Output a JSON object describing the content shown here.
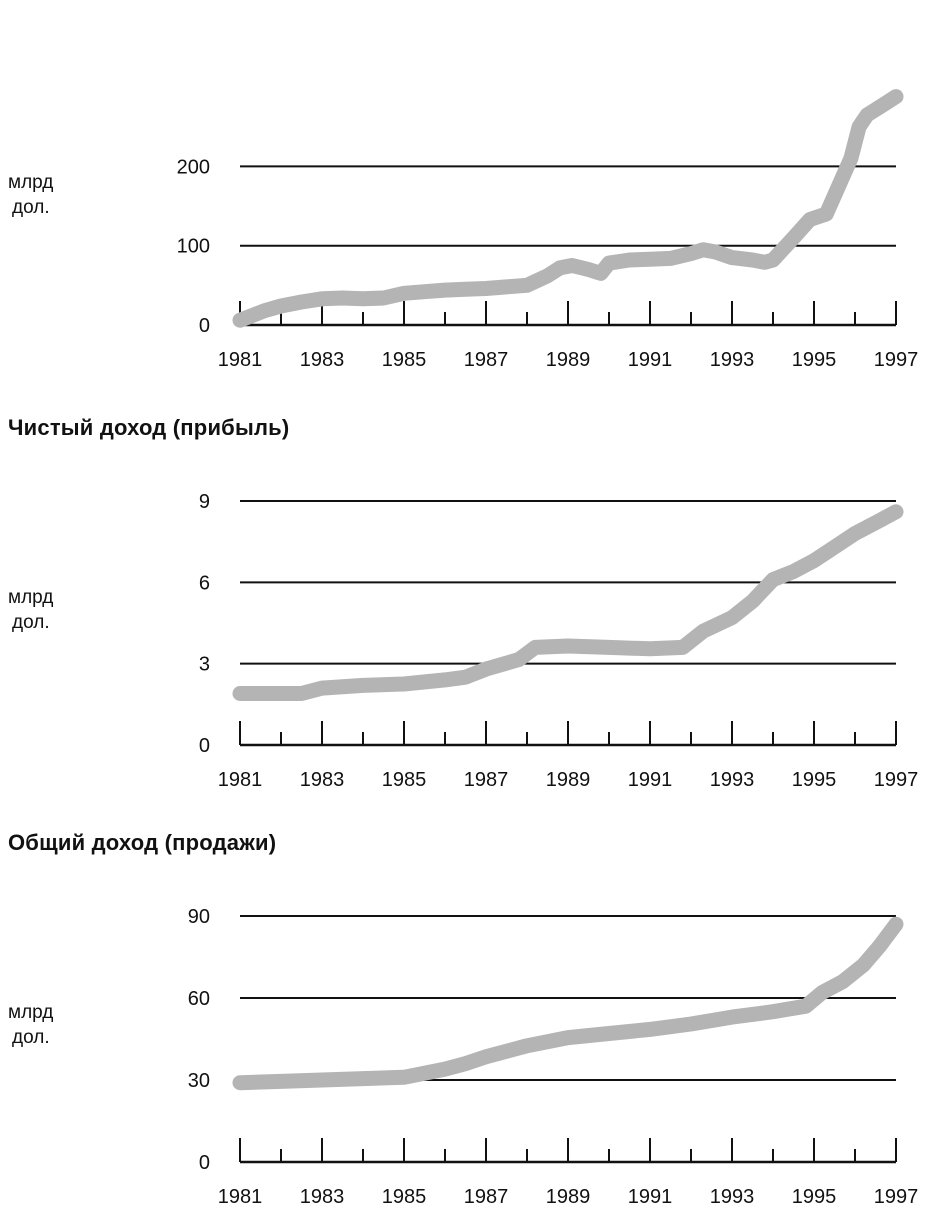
{
  "chart_data": [
    {
      "type": "line",
      "title": "",
      "unit_label": [
        "млрд",
        "дол."
      ],
      "ylim": [
        0,
        290
      ],
      "yticks": [
        0,
        100,
        200
      ],
      "xlim": [
        1981,
        1997
      ],
      "xtick_labels": [
        "1981",
        "1983",
        "1985",
        "1987",
        "1989",
        "1991",
        "1993",
        "1995",
        "1997"
      ],
      "grid": "horizontal",
      "series": [
        {
          "color": "#b4b4b4",
          "x": [
            1981,
            1981.3,
            1981.6,
            1982,
            1982.5,
            1983,
            1983.5,
            1984,
            1984.5,
            1985,
            1985.5,
            1986,
            1986.5,
            1987,
            1987.5,
            1988,
            1988.5,
            1988.8,
            1989.1,
            1989.5,
            1989.8,
            1990,
            1990.5,
            1991,
            1991.5,
            1992,
            1992.3,
            1992.6,
            1993,
            1993.5,
            1993.8,
            1994,
            1994.5,
            1994.9,
            1995.3,
            1995.6,
            1995.9,
            1996.1,
            1996.3,
            1996.7,
            1997
          ],
          "y": [
            6,
            12,
            18,
            24,
            29,
            33,
            34,
            33,
            34,
            40,
            42,
            44,
            45,
            46,
            48,
            50,
            62,
            72,
            75,
            70,
            65,
            78,
            82,
            83,
            84,
            90,
            95,
            92,
            85,
            82,
            79,
            82,
            110,
            133,
            140,
            175,
            210,
            250,
            265,
            278,
            288
          ]
        }
      ]
    },
    {
      "type": "line",
      "title": "Чистый доход (прибыль)",
      "unit_label": [
        "млрд",
        "дол."
      ],
      "ylim": [
        0,
        9
      ],
      "yticks": [
        0,
        3,
        6,
        9
      ],
      "xlim": [
        1981,
        1997
      ],
      "xtick_labels": [
        "1981",
        "1983",
        "1985",
        "1987",
        "1989",
        "1991",
        "1993",
        "1995",
        "1997"
      ],
      "grid": "horizontal",
      "series": [
        {
          "color": "#b4b4b4",
          "x": [
            1981,
            1982,
            1982.5,
            1983,
            1984,
            1985,
            1986,
            1986.5,
            1987,
            1987.8,
            1988.2,
            1989,
            1990,
            1991,
            1991.8,
            1992.3,
            1993,
            1993.5,
            1994,
            1994.5,
            1995,
            1995.5,
            1996,
            1996.5,
            1997
          ],
          "y": [
            1.9,
            1.9,
            1.9,
            2.1,
            2.2,
            2.25,
            2.4,
            2.5,
            2.8,
            3.15,
            3.6,
            3.65,
            3.6,
            3.55,
            3.6,
            4.2,
            4.7,
            5.3,
            6.1,
            6.4,
            6.8,
            7.3,
            7.8,
            8.2,
            8.6
          ]
        }
      ]
    },
    {
      "type": "line",
      "title": "Общий доход (продажи)",
      "unit_label": [
        "млрд",
        "дол."
      ],
      "ylim": [
        0,
        90
      ],
      "yticks": [
        0,
        30,
        60,
        90
      ],
      "xlim": [
        1981,
        1997
      ],
      "xtick_labels": [
        "1981",
        "1983",
        "1985",
        "1987",
        "1989",
        "1991",
        "1993",
        "1995",
        "1997"
      ],
      "grid": "horizontal",
      "series": [
        {
          "color": "#b4b4b4",
          "x": [
            1981,
            1982,
            1983,
            1984,
            1985,
            1986,
            1986.5,
            1987,
            1988,
            1989,
            1990,
            1991,
            1992,
            1993,
            1994,
            1994.8,
            1995.2,
            1995.7,
            1996.2,
            1996.6,
            1997
          ],
          "y": [
            29,
            29.5,
            30,
            30.5,
            31,
            34,
            36,
            38.5,
            42.5,
            45.5,
            47,
            48.5,
            50.5,
            53,
            55,
            57,
            62,
            66,
            72,
            79,
            87
          ]
        }
      ]
    }
  ]
}
